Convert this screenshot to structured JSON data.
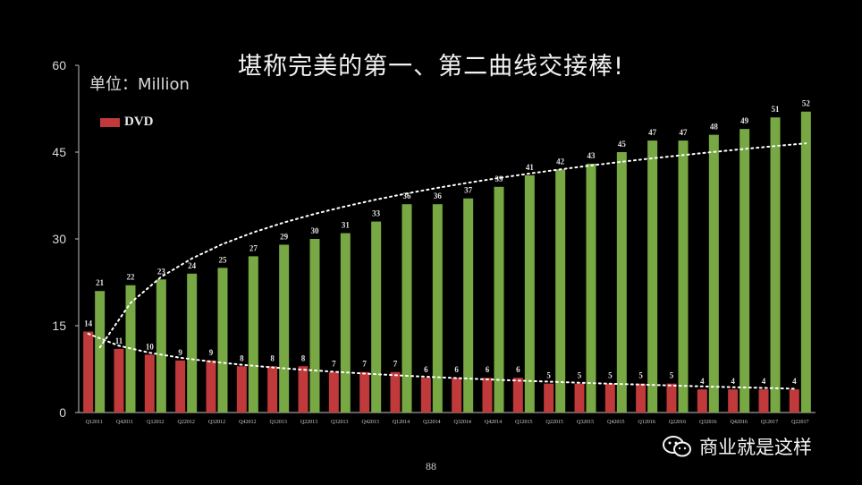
{
  "title": "堪称完美的第一、第二曲线交接棒!",
  "unit_label": "单位：Million",
  "page_number": "88",
  "watermark": "商业就是这样",
  "colors": {
    "background": "#000000",
    "dvd_bar": "#c0393b",
    "streaming_bar": "#77a843",
    "trend_line": "#ffffff"
  },
  "chart_data": {
    "type": "bar",
    "categories": [
      "Q12011",
      "Q42011",
      "Q12012",
      "Q22012",
      "Q32012",
      "Q42012",
      "Q12013",
      "Q22013",
      "Q32013",
      "Q42013",
      "Q12014",
      "Q22014",
      "Q32014",
      "Q42014",
      "Q12015",
      "Q22015",
      "Q32015",
      "Q42015",
      "Q12016",
      "Q22016",
      "Q32016",
      "Q42016",
      "Q12017",
      "Q22017"
    ],
    "series": [
      {
        "name": "DVD",
        "values": [
          14,
          11,
          10,
          9,
          9,
          8,
          8,
          8,
          7,
          7,
          7,
          6,
          6,
          6,
          6,
          5,
          5,
          5,
          5,
          5,
          4,
          4,
          4,
          4
        ]
      },
      {
        "values": [
          21,
          22,
          23,
          24,
          25,
          27,
          29,
          30,
          31,
          33,
          36,
          36,
          37,
          39,
          41,
          42,
          43,
          45,
          47,
          47,
          48,
          49,
          51,
          52
        ]
      }
    ],
    "ylim": [
      0,
      60
    ],
    "yticks": [
      0,
      15,
      30,
      45,
      60
    ],
    "legend": "top-left",
    "grid": false,
    "trendlines": "dotted"
  }
}
